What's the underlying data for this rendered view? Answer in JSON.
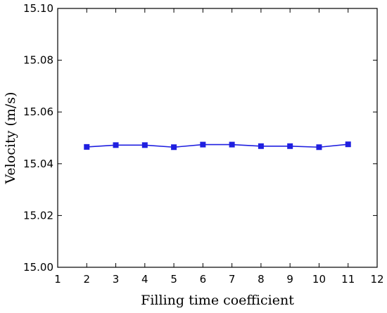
{
  "chart_data": {
    "type": "line",
    "xlabel": "Filling time coefficient",
    "ylabel": "Velocity (m/s)",
    "xlim": [
      1,
      12
    ],
    "ylim": [
      15.0,
      15.1
    ],
    "xticks": [
      1,
      2,
      3,
      4,
      5,
      6,
      7,
      8,
      9,
      10,
      11,
      12
    ],
    "yticks": [
      "15.00",
      "15.02",
      "15.04",
      "15.06",
      "15.08",
      "15.10"
    ],
    "grid": false,
    "series": [
      {
        "color": "#1f1fe0",
        "marker": "square",
        "x": [
          2,
          3,
          4,
          5,
          6,
          7,
          8,
          9,
          10,
          11
        ],
        "y": [
          15.0465,
          15.0472,
          15.0472,
          15.0464,
          15.0474,
          15.0474,
          15.0468,
          15.0468,
          15.0464,
          15.0475
        ]
      }
    ]
  }
}
